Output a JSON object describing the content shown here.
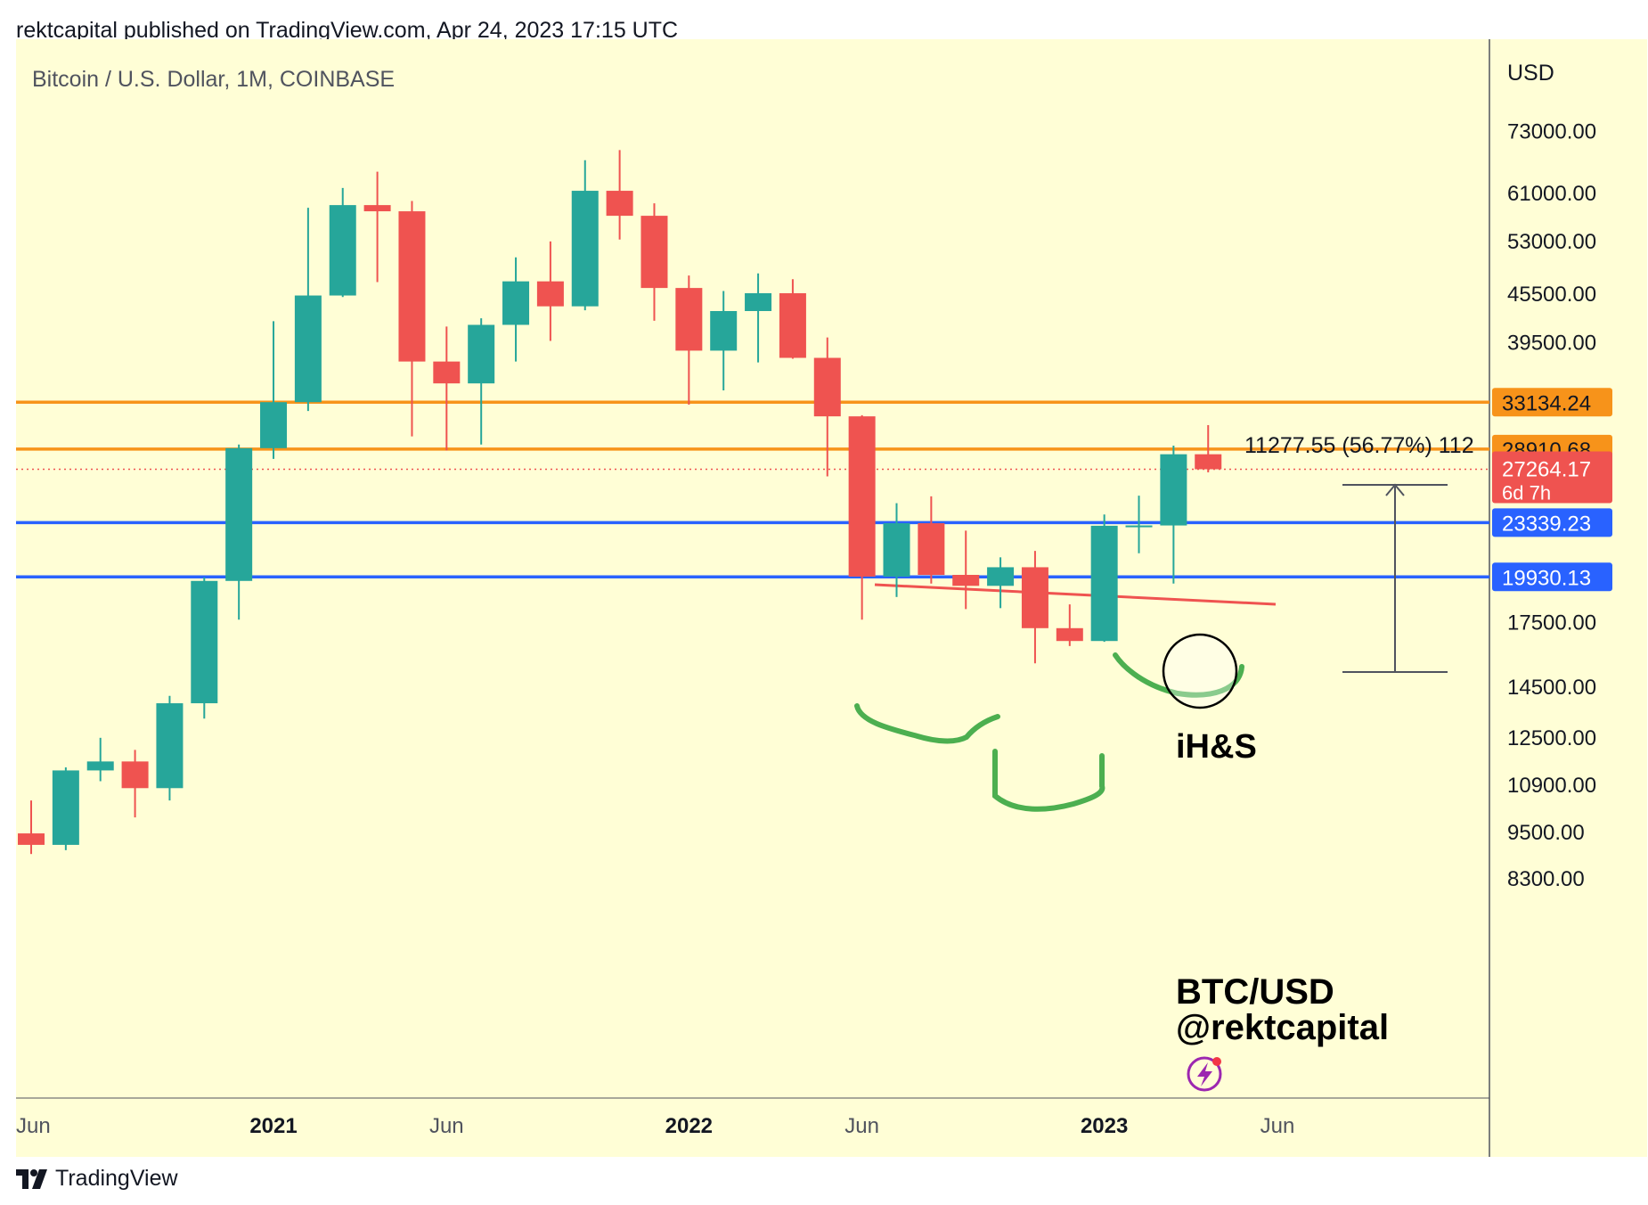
{
  "header": {
    "publisher": "rektcapital published on TradingView.com, Apr 24, 2023 17:15 UTC"
  },
  "footer": {
    "brand": "TradingView"
  },
  "chart_data": {
    "type": "candlestick",
    "title": "Bitcoin / U.S. Dollar, 1M, COINBASE",
    "currency_label": "USD",
    "scale": "log",
    "background": "#fffed6",
    "colors": {
      "up": "#26a69a",
      "down": "#ef5350",
      "orange": "#f7931a",
      "blue": "#2962ff",
      "green": "#4caf50"
    },
    "price_ticks": [
      "73000.00",
      "61000.00",
      "53000.00",
      "45500.00",
      "39500.00",
      "17500.00",
      "14500.00",
      "12500.00",
      "10900.00",
      "9500.00",
      "8300.00"
    ],
    "time_ticks": [
      {
        "label": "Jun",
        "bold": false,
        "index": 0
      },
      {
        "label": "2021",
        "bold": true,
        "index": 7
      },
      {
        "label": "Jun",
        "bold": false,
        "index": 12
      },
      {
        "label": "2022",
        "bold": true,
        "index": 19
      },
      {
        "label": "Jun",
        "bold": false,
        "index": 24
      },
      {
        "label": "2023",
        "bold": true,
        "index": 31
      },
      {
        "label": "Jun",
        "bold": false,
        "index": 36
      }
    ],
    "candles": [
      {
        "date": "2020-06",
        "open": 9450,
        "high": 10400,
        "low": 8900,
        "close": 9140
      },
      {
        "date": "2020-07",
        "open": 9140,
        "high": 11450,
        "low": 9000,
        "close": 11350
      },
      {
        "date": "2020-08",
        "open": 11350,
        "high": 12480,
        "low": 11000,
        "close": 11650
      },
      {
        "date": "2020-09",
        "open": 11650,
        "high": 12050,
        "low": 9900,
        "close": 10780
      },
      {
        "date": "2020-10",
        "open": 10780,
        "high": 14100,
        "low": 10400,
        "close": 13800
      },
      {
        "date": "2020-11",
        "open": 13800,
        "high": 19900,
        "low": 13200,
        "close": 19700
      },
      {
        "date": "2020-12",
        "open": 19700,
        "high": 29300,
        "low": 17600,
        "close": 28990
      },
      {
        "date": "2021-01",
        "open": 28990,
        "high": 41950,
        "low": 28100,
        "close": 33140
      },
      {
        "date": "2021-02",
        "open": 33140,
        "high": 58350,
        "low": 32300,
        "close": 45200
      },
      {
        "date": "2021-03",
        "open": 45200,
        "high": 61800,
        "low": 45000,
        "close": 58800
      },
      {
        "date": "2021-04",
        "open": 58800,
        "high": 64800,
        "low": 47000,
        "close": 57750
      },
      {
        "date": "2021-05",
        "open": 57750,
        "high": 59500,
        "low": 30000,
        "close": 37300
      },
      {
        "date": "2021-06",
        "open": 37300,
        "high": 41300,
        "low": 28800,
        "close": 35000
      },
      {
        "date": "2021-07",
        "open": 35000,
        "high": 42300,
        "low": 29300,
        "close": 41500
      },
      {
        "date": "2021-08",
        "open": 41500,
        "high": 50500,
        "low": 37300,
        "close": 47100
      },
      {
        "date": "2021-09",
        "open": 47100,
        "high": 52900,
        "low": 39600,
        "close": 43800
      },
      {
        "date": "2021-10",
        "open": 43800,
        "high": 67000,
        "low": 43300,
        "close": 61300
      },
      {
        "date": "2021-11",
        "open": 61300,
        "high": 69000,
        "low": 53200,
        "close": 57000
      },
      {
        "date": "2021-12",
        "open": 57000,
        "high": 59100,
        "low": 42000,
        "close": 46200
      },
      {
        "date": "2022-01",
        "open": 46200,
        "high": 47900,
        "low": 32900,
        "close": 38500
      },
      {
        "date": "2022-02",
        "open": 38500,
        "high": 45800,
        "low": 34300,
        "close": 43200
      },
      {
        "date": "2022-03",
        "open": 43200,
        "high": 48200,
        "low": 37200,
        "close": 45500
      },
      {
        "date": "2022-04",
        "open": 45500,
        "high": 47400,
        "low": 37600,
        "close": 37700
      },
      {
        "date": "2022-05",
        "open": 37700,
        "high": 40000,
        "low": 26700,
        "close": 31800
      },
      {
        "date": "2022-06",
        "open": 31800,
        "high": 31900,
        "low": 17600,
        "close": 19950
      },
      {
        "date": "2022-07",
        "open": 19950,
        "high": 24700,
        "low": 18800,
        "close": 23300
      },
      {
        "date": "2022-08",
        "open": 23300,
        "high": 25200,
        "low": 19550,
        "close": 20050
      },
      {
        "date": "2022-09",
        "open": 20050,
        "high": 22800,
        "low": 18150,
        "close": 19420
      },
      {
        "date": "2022-10",
        "open": 19420,
        "high": 21100,
        "low": 18200,
        "close": 20500
      },
      {
        "date": "2022-11",
        "open": 20500,
        "high": 21500,
        "low": 15500,
        "close": 17170
      },
      {
        "date": "2022-12",
        "open": 17170,
        "high": 18400,
        "low": 16300,
        "close": 16540
      },
      {
        "date": "2023-01",
        "open": 16540,
        "high": 23900,
        "low": 16500,
        "close": 23130
      },
      {
        "date": "2023-02",
        "open": 23130,
        "high": 25250,
        "low": 21350,
        "close": 23150
      },
      {
        "date": "2023-03",
        "open": 23150,
        "high": 29200,
        "low": 19550,
        "close": 28480
      },
      {
        "date": "2023-04",
        "open": 28480,
        "high": 31000,
        "low": 27020,
        "close": 27264
      }
    ],
    "horizontal_levels": [
      {
        "price": 33134.24,
        "label": "33134.24",
        "color": "orange"
      },
      {
        "price": 28910.68,
        "label": "28910.68",
        "color": "orange"
      },
      {
        "price": 23339.23,
        "label": "23339.23",
        "color": "blue"
      },
      {
        "price": 19930.13,
        "label": "19930.13",
        "color": "blue"
      }
    ],
    "current_price": {
      "label": "27264.17",
      "countdown": "6d 7h",
      "price": 27264.17
    },
    "measure_label": "11277.55 (56.77%) 112",
    "annotations": [
      "iH&S",
      "BTC/USD",
      "@rektcapital"
    ]
  }
}
